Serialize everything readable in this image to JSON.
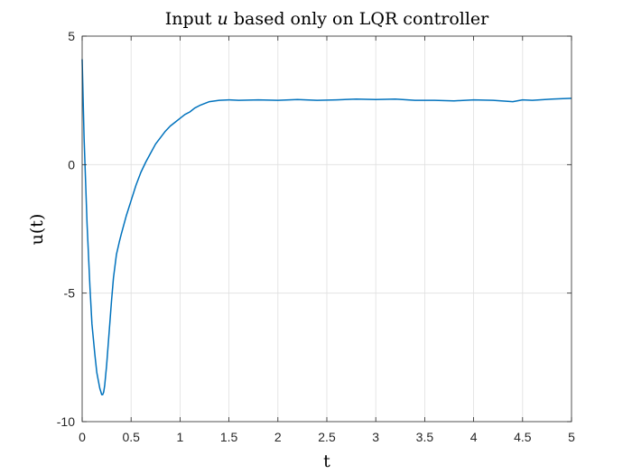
{
  "chart_data": {
    "type": "line",
    "title_prefix": "Input ",
    "title_var": "u",
    "title_suffix": " based only on LQR controller",
    "xlabel": "t",
    "ylabel": "u(t)",
    "xlim": [
      0,
      5
    ],
    "ylim": [
      -10,
      5
    ],
    "xticks": [
      0,
      0.5,
      1,
      1.5,
      2,
      2.5,
      3,
      3.5,
      4,
      4.5,
      5
    ],
    "xtick_labels": [
      "0",
      "0.5",
      "1",
      "1.5",
      "2",
      "2.5",
      "3",
      "3.5",
      "4",
      "4.5",
      "5"
    ],
    "yticks": [
      -10,
      -5,
      0,
      5
    ],
    "ytick_labels": [
      "-10",
      "-5",
      "0",
      "5"
    ],
    "grid": true,
    "line_color": "#0072BD",
    "series": [
      {
        "x": [
          0,
          0.02,
          0.05,
          0.08,
          0.1,
          0.13,
          0.15,
          0.18,
          0.2,
          0.21,
          0.22,
          0.23,
          0.25,
          0.27,
          0.3,
          0.32,
          0.35,
          0.38,
          0.4,
          0.45,
          0.5,
          0.55,
          0.6,
          0.65,
          0.7,
          0.75,
          0.8,
          0.85,
          0.9,
          0.95,
          1.0,
          1.05,
          1.1,
          1.15,
          1.2,
          1.3,
          1.4,
          1.5,
          1.6,
          1.8,
          2.0,
          2.2,
          2.4,
          2.6,
          2.8,
          3.0,
          3.2,
          3.4,
          3.6,
          3.8,
          4.0,
          4.2,
          4.4,
          4.5,
          4.6,
          4.8,
          5.0
        ],
        "y": [
          4.1,
          1.0,
          -2.3,
          -4.8,
          -6.2,
          -7.4,
          -8.1,
          -8.7,
          -8.95,
          -8.95,
          -8.85,
          -8.6,
          -7.8,
          -6.8,
          -5.3,
          -4.4,
          -3.5,
          -3.0,
          -2.7,
          -2.0,
          -1.4,
          -0.8,
          -0.3,
          0.1,
          0.45,
          0.8,
          1.05,
          1.3,
          1.5,
          1.65,
          1.8,
          1.95,
          2.05,
          2.2,
          2.3,
          2.45,
          2.5,
          2.52,
          2.5,
          2.52,
          2.5,
          2.53,
          2.5,
          2.52,
          2.55,
          2.53,
          2.55,
          2.5,
          2.5,
          2.48,
          2.52,
          2.5,
          2.45,
          2.52,
          2.5,
          2.55,
          2.58
        ]
      }
    ]
  }
}
